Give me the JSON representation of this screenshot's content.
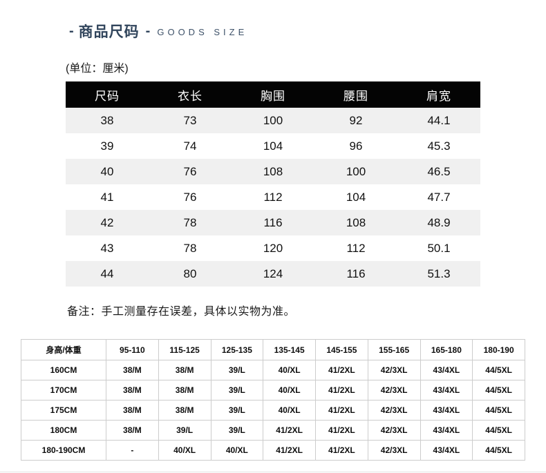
{
  "header": {
    "dash": "-",
    "title_cn": "商品尺码",
    "title_en": "GOODS SIZE",
    "accent_color": "#31455c"
  },
  "unit_label": "(单位：厘米)",
  "size_table": {
    "headers": [
      "尺码",
      "衣长",
      "胸围",
      "腰围",
      "肩宽"
    ],
    "rows": [
      [
        "38",
        "73",
        "100",
        "92",
        "44.1"
      ],
      [
        "39",
        "74",
        "104",
        "96",
        "45.3"
      ],
      [
        "40",
        "76",
        "108",
        "100",
        "46.5"
      ],
      [
        "41",
        "76",
        "112",
        "104",
        "47.7"
      ],
      [
        "42",
        "78",
        "116",
        "108",
        "48.9"
      ],
      [
        "43",
        "78",
        "120",
        "112",
        "50.1"
      ],
      [
        "44",
        "80",
        "124",
        "116",
        "51.3"
      ]
    ],
    "header_bg": "#040404",
    "stripe_bg": "#f0f0f0"
  },
  "note": "备注：手工测量存在误差，具体以实物为准。",
  "fit_table": {
    "headers": [
      "身高/体重",
      "95-110",
      "115-125",
      "125-135",
      "135-145",
      "145-155",
      "155-165",
      "165-180",
      "180-190"
    ],
    "rows": [
      [
        "160CM",
        "38/M",
        "38/M",
        "39/L",
        "40/XL",
        "41/2XL",
        "42/3XL",
        "43/4XL",
        "44/5XL"
      ],
      [
        "170CM",
        "38/M",
        "38/M",
        "39/L",
        "40/XL",
        "41/2XL",
        "42/3XL",
        "43/4XL",
        "44/5XL"
      ],
      [
        "175CM",
        "38/M",
        "38/M",
        "39/L",
        "40/XL",
        "41/2XL",
        "42/3XL",
        "43/4XL",
        "44/5XL"
      ],
      [
        "180CM",
        "38/M",
        "39/L",
        "39/L",
        "41/2XL",
        "41/2XL",
        "42/3XL",
        "43/4XL",
        "44/5XL"
      ],
      [
        "180-190CM",
        "-",
        "40/XL",
        "40/XL",
        "41/2XL",
        "41/2XL",
        "42/3XL",
        "43/4XL",
        "44/5XL"
      ]
    ],
    "border_color": "#cccccc"
  }
}
